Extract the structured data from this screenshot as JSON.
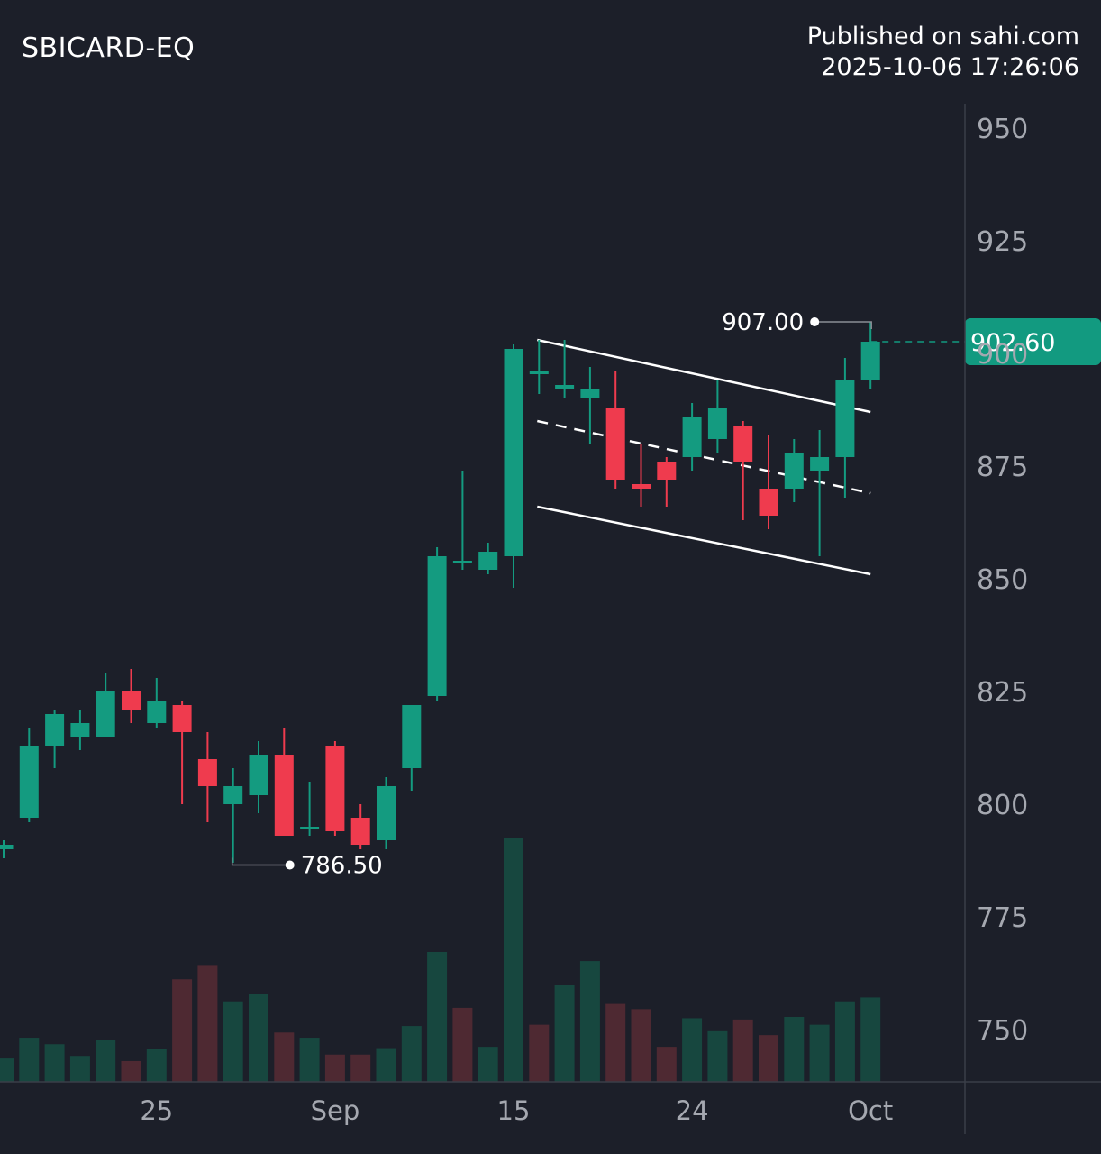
{
  "header": {
    "symbol": "SBICARD-EQ",
    "published": "Published on sahi.com",
    "timestamp": "2025-10-06 17:26:06"
  },
  "colors": {
    "background": "#1c1f29",
    "up": "#149b80",
    "down": "#ef3b4e",
    "volume_up": "#17473f",
    "volume_down": "#4e2932",
    "axis_text": "#a5a8b0",
    "price_tag": "#129a80"
  },
  "chart_data": {
    "type": "candlestick",
    "y_ticks": [
      "750",
      "775",
      "800",
      "825",
      "850",
      "875",
      "900",
      "925",
      "950"
    ],
    "ylim": [
      736,
      951
    ],
    "x_ticks": [
      {
        "label": "25",
        "index": 6
      },
      {
        "label": "Sep",
        "index": 13
      },
      {
        "label": "15",
        "index": 20
      },
      {
        "label": "24",
        "index": 27
      },
      {
        "label": "Oct",
        "index": 34
      }
    ],
    "candles": [
      {
        "o": 790,
        "h": 792,
        "l": 788,
        "c": 791
      },
      {
        "o": 797,
        "h": 817,
        "l": 796,
        "c": 813
      },
      {
        "o": 813,
        "h": 821,
        "l": 808,
        "c": 820
      },
      {
        "o": 815,
        "h": 821,
        "l": 812,
        "c": 818
      },
      {
        "o": 815,
        "h": 829,
        "l": 815,
        "c": 825
      },
      {
        "o": 825,
        "h": 830,
        "l": 818,
        "c": 821
      },
      {
        "o": 818,
        "h": 828,
        "l": 817,
        "c": 823
      },
      {
        "o": 822,
        "h": 823,
        "l": 800,
        "c": 816
      },
      {
        "o": 810,
        "h": 816,
        "l": 796,
        "c": 804
      },
      {
        "o": 800,
        "h": 808,
        "l": 787,
        "c": 804
      },
      {
        "o": 802,
        "h": 814,
        "l": 798,
        "c": 811
      },
      {
        "o": 811,
        "h": 817,
        "l": 793,
        "c": 793
      },
      {
        "o": 795,
        "h": 805,
        "l": 793,
        "c": 795
      },
      {
        "o": 813,
        "h": 814,
        "l": 793,
        "c": 794
      },
      {
        "o": 797,
        "h": 800,
        "l": 790,
        "c": 791
      },
      {
        "o": 792,
        "h": 806,
        "l": 790,
        "c": 804
      },
      {
        "o": 808,
        "h": 821,
        "l": 803,
        "c": 822
      },
      {
        "o": 824,
        "h": 857,
        "l": 823,
        "c": 855
      },
      {
        "o": 854,
        "h": 874,
        "l": 852,
        "c": 854
      },
      {
        "o": 852,
        "h": 858,
        "l": 851,
        "c": 856
      },
      {
        "o": 855,
        "h": 902,
        "l": 848,
        "c": 901
      },
      {
        "o": 896,
        "h": 903,
        "l": 891,
        "c": 896
      },
      {
        "o": 892,
        "h": 903,
        "l": 890,
        "c": 893
      },
      {
        "o": 890,
        "h": 897,
        "l": 880,
        "c": 892
      },
      {
        "o": 888,
        "h": 896,
        "l": 870,
        "c": 872
      },
      {
        "o": 871,
        "h": 880,
        "l": 866,
        "c": 870
      },
      {
        "o": 876,
        "h": 877,
        "l": 866,
        "c": 872
      },
      {
        "o": 877,
        "h": 889,
        "l": 874,
        "c": 886
      },
      {
        "o": 881,
        "h": 894,
        "l": 878,
        "c": 888
      },
      {
        "o": 884,
        "h": 885,
        "l": 863,
        "c": 876
      },
      {
        "o": 870,
        "h": 882,
        "l": 861,
        "c": 864
      },
      {
        "o": 870,
        "h": 881,
        "l": 867,
        "c": 878
      },
      {
        "o": 874,
        "h": 883,
        "l": 855,
        "c": 877
      },
      {
        "o": 877,
        "h": 899,
        "l": 868,
        "c": 894
      },
      {
        "o": 894,
        "h": 907,
        "l": 892,
        "c": 902.6
      }
    ],
    "volume": [
      {
        "v": 18,
        "dir": "up"
      },
      {
        "v": 34,
        "dir": "up"
      },
      {
        "v": 29,
        "dir": "up"
      },
      {
        "v": 20,
        "dir": "up"
      },
      {
        "v": 32,
        "dir": "up"
      },
      {
        "v": 16,
        "dir": "down"
      },
      {
        "v": 25,
        "dir": "up"
      },
      {
        "v": 79,
        "dir": "down"
      },
      {
        "v": 90,
        "dir": "down"
      },
      {
        "v": 62,
        "dir": "up"
      },
      {
        "v": 68,
        "dir": "up"
      },
      {
        "v": 38,
        "dir": "down"
      },
      {
        "v": 34,
        "dir": "up"
      },
      {
        "v": 21,
        "dir": "down"
      },
      {
        "v": 21,
        "dir": "down"
      },
      {
        "v": 26,
        "dir": "up"
      },
      {
        "v": 43,
        "dir": "up"
      },
      {
        "v": 100,
        "dir": "up"
      },
      {
        "v": 57,
        "dir": "down"
      },
      {
        "v": 27,
        "dir": "up"
      },
      {
        "v": 188,
        "dir": "up"
      },
      {
        "v": 44,
        "dir": "down"
      },
      {
        "v": 75,
        "dir": "up"
      },
      {
        "v": 93,
        "dir": "up"
      },
      {
        "v": 60,
        "dir": "down"
      },
      {
        "v": 56,
        "dir": "down"
      },
      {
        "v": 27,
        "dir": "down"
      },
      {
        "v": 49,
        "dir": "up"
      },
      {
        "v": 39,
        "dir": "up"
      },
      {
        "v": 48,
        "dir": "down"
      },
      {
        "v": 36,
        "dir": "down"
      },
      {
        "v": 50,
        "dir": "up"
      },
      {
        "v": 44,
        "dir": "up"
      },
      {
        "v": 62,
        "dir": "up"
      },
      {
        "v": 65,
        "dir": "up"
      }
    ],
    "annotations": {
      "high_label": "907.00",
      "high_value": 907,
      "high_index": 34,
      "low_label": "786.50",
      "low_value": 786.5,
      "low_index": 9,
      "last_price_label": "902.60",
      "last_price": 902.6
    },
    "channel": {
      "start_index": 21,
      "end_index": 34,
      "upper": [
        903,
        887
      ],
      "middle": [
        885,
        869
      ],
      "lower": [
        866,
        851
      ]
    }
  }
}
